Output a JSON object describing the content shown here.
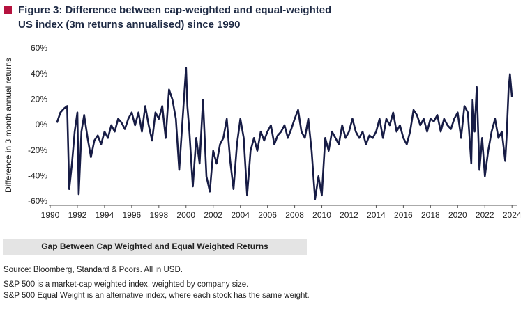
{
  "chart_data": {
    "type": "line",
    "title": [
      "Figure 3:  Difference between cap-weighted and equal-weighted",
      "US index (3m returns annualised) since 1990"
    ],
    "y_label": "Difference in 3 month annual returns",
    "xlim": [
      1990,
      2024.4
    ],
    "xticks": [
      1990,
      1992,
      1994,
      1996,
      1998,
      2000,
      2002,
      2004,
      2006,
      2008,
      2010,
      2012,
      2014,
      2016,
      2018,
      2020,
      2022,
      2024
    ],
    "ylim": [
      -60,
      60
    ],
    "yticks": [
      {
        "value": -60,
        "label": "-60%"
      },
      {
        "value": -40,
        "label": "-40%"
      },
      {
        "value": -20,
        "label": "-20%"
      },
      {
        "value": 0,
        "label": "0%"
      },
      {
        "value": 20,
        "label": "20%"
      },
      {
        "value": 40,
        "label": "40%"
      },
      {
        "value": 60,
        "label": "60%"
      }
    ],
    "grid": false,
    "series": [
      {
        "name": "Gap Between Cap Weighted and Equal Weighted Returns",
        "color": "#171c45",
        "x": [
          1990.5,
          1990.75,
          1991.0,
          1991.25,
          1991.4,
          1991.6,
          1991.8,
          1992.0,
          1992.1,
          1992.3,
          1992.5,
          1992.75,
          1993.0,
          1993.25,
          1993.5,
          1993.75,
          1994.0,
          1994.25,
          1994.5,
          1994.75,
          1995.0,
          1995.25,
          1995.5,
          1995.75,
          1996.0,
          1996.25,
          1996.5,
          1996.75,
          1997.0,
          1997.25,
          1997.5,
          1997.75,
          1998.0,
          1998.25,
          1998.5,
          1998.75,
          1999.0,
          1999.25,
          1999.5,
          1999.75,
          2000.0,
          2000.1,
          2000.25,
          2000.5,
          2000.75,
          2001.0,
          2001.25,
          2001.5,
          2001.75,
          2002.0,
          2002.25,
          2002.5,
          2002.75,
          2003.0,
          2003.25,
          2003.5,
          2003.75,
          2004.0,
          2004.25,
          2004.5,
          2004.75,
          2005.0,
          2005.25,
          2005.5,
          2005.75,
          2006.0,
          2006.25,
          2006.5,
          2006.75,
          2007.0,
          2007.25,
          2007.5,
          2007.75,
          2008.0,
          2008.25,
          2008.5,
          2008.75,
          2009.0,
          2009.25,
          2009.5,
          2009.75,
          2010.0,
          2010.25,
          2010.5,
          2010.75,
          2011.0,
          2011.25,
          2011.5,
          2011.75,
          2012.0,
          2012.25,
          2012.5,
          2012.75,
          2013.0,
          2013.25,
          2013.5,
          2013.75,
          2014.0,
          2014.25,
          2014.5,
          2014.75,
          2015.0,
          2015.25,
          2015.5,
          2015.75,
          2016.0,
          2016.25,
          2016.5,
          2016.75,
          2017.0,
          2017.25,
          2017.5,
          2017.75,
          2018.0,
          2018.25,
          2018.5,
          2018.75,
          2019.0,
          2019.25,
          2019.5,
          2019.75,
          2020.0,
          2020.25,
          2020.5,
          2020.75,
          2021.0,
          2021.1,
          2021.25,
          2021.4,
          2021.6,
          2021.8,
          2022.0,
          2022.25,
          2022.5,
          2022.75,
          2023.0,
          2023.25,
          2023.5,
          2023.6,
          2023.75,
          2023.85,
          2024.0
        ],
        "values": [
          2,
          10,
          13,
          15,
          -50,
          -30,
          -5,
          10,
          -54,
          -5,
          8,
          -10,
          -25,
          -12,
          -8,
          -15,
          -5,
          -10,
          0,
          -5,
          5,
          2,
          -3,
          5,
          10,
          0,
          10,
          -5,
          15,
          0,
          -12,
          10,
          5,
          15,
          -10,
          28,
          20,
          5,
          -35,
          5,
          45,
          15,
          -5,
          -48,
          -10,
          -30,
          20,
          -40,
          -52,
          -20,
          -30,
          -15,
          -10,
          5,
          -28,
          -50,
          -15,
          5,
          -10,
          -55,
          -20,
          -10,
          -20,
          -5,
          -12,
          -5,
          0,
          -15,
          -8,
          -5,
          0,
          -10,
          -3,
          5,
          12,
          -5,
          -10,
          5,
          -20,
          -58,
          -40,
          -55,
          -10,
          -20,
          -5,
          -10,
          -15,
          0,
          -10,
          -5,
          5,
          -5,
          -10,
          -5,
          -15,
          -8,
          -10,
          -5,
          5,
          -10,
          5,
          0,
          10,
          -5,
          0,
          -10,
          -15,
          -5,
          12,
          8,
          0,
          5,
          -5,
          5,
          3,
          8,
          -5,
          5,
          0,
          -3,
          5,
          10,
          -10,
          15,
          10,
          -30,
          20,
          -5,
          30,
          -35,
          -10,
          -40,
          -20,
          -5,
          5,
          -10,
          -5,
          -28,
          -10,
          28,
          40,
          22
        ]
      }
    ],
    "notes": [
      "Source: Bloomberg, Standard & Poors.  All in USD.",
      "S&P 500 is a market-cap weighted index, weighted by company size.",
      "S&P 500 Equal Weight is an alternative index, where each stock has the same weight."
    ]
  }
}
